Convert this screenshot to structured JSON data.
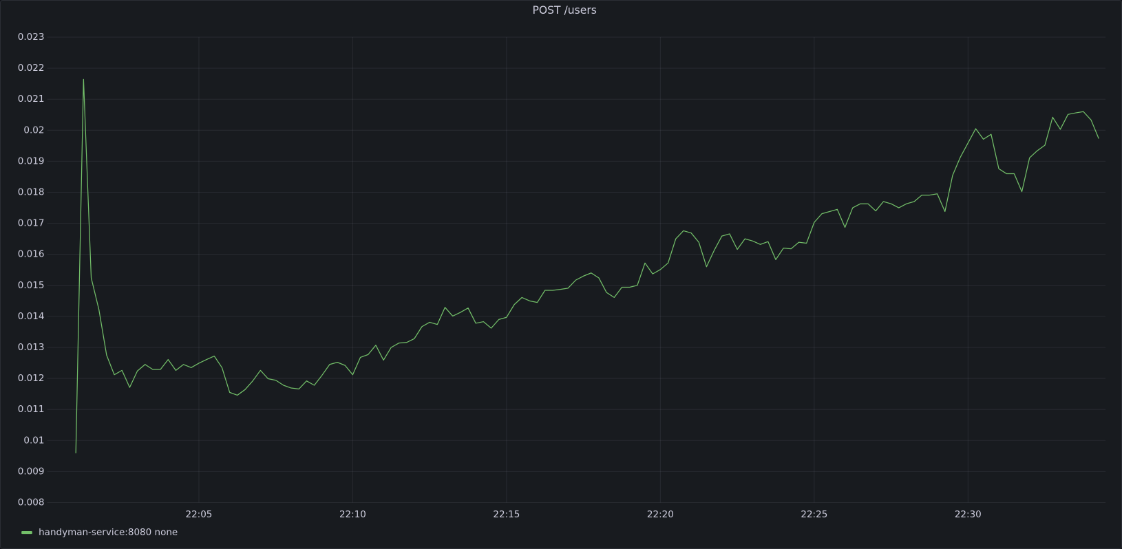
{
  "chart_data": {
    "type": "line",
    "title": "POST /users",
    "x": [
      1,
      1.25,
      1.5,
      1.75,
      2,
      2.25,
      2.5,
      2.75,
      3,
      3.25,
      3.5,
      3.75,
      4,
      4.25,
      4.5,
      4.75,
      5,
      5.25,
      5.5,
      5.75,
      6,
      6.25,
      6.5,
      6.75,
      7,
      7.25,
      7.5,
      7.75,
      8,
      8.25,
      8.5,
      8.75,
      9,
      9.25,
      9.5,
      9.75,
      10,
      10.25,
      10.5,
      10.75,
      11,
      11.25,
      11.5,
      11.75,
      12,
      12.25,
      12.5,
      12.75,
      13,
      13.25,
      13.5,
      13.75,
      14,
      14.25,
      14.5,
      14.75,
      15,
      15.25,
      15.5,
      15.75,
      16,
      16.25,
      16.5,
      16.75,
      17,
      17.25,
      17.5,
      17.75,
      18,
      18.25,
      18.5,
      18.75,
      19,
      19.25,
      19.5,
      19.75,
      20,
      20.25,
      20.5,
      20.75,
      21,
      21.25,
      21.5,
      21.75,
      22,
      22.25,
      22.5,
      22.75,
      23,
      23.25,
      23.5,
      23.75,
      24,
      24.25,
      24.5,
      24.75,
      25,
      25.25,
      25.5,
      25.75,
      26,
      26.25,
      26.5,
      26.75,
      27,
      27.25,
      27.5,
      27.75,
      28,
      28.25,
      28.5,
      28.75,
      29,
      29.25,
      29.5,
      29.75,
      30,
      30.25,
      30.5,
      30.75,
      31,
      31.25,
      31.5,
      31.75,
      32,
      32.25,
      32.5,
      32.75,
      33,
      33.25,
      33.5,
      33.75,
      34,
      34.25
    ],
    "series": [
      {
        "name": "handyman-service:8080 none",
        "color": "#73bf69",
        "values": [
          0.00959,
          0.02164,
          0.01524,
          0.01422,
          0.01275,
          0.01212,
          0.01226,
          0.01171,
          0.01224,
          0.01245,
          0.01229,
          0.01229,
          0.01261,
          0.01226,
          0.01245,
          0.01235,
          0.01249,
          0.01261,
          0.01272,
          0.01235,
          0.01155,
          0.01146,
          0.01164,
          0.01192,
          0.01226,
          0.01199,
          0.01194,
          0.01178,
          0.01169,
          0.01166,
          0.01192,
          0.01178,
          0.0121,
          0.01245,
          0.01252,
          0.01242,
          0.01212,
          0.01268,
          0.01277,
          0.01307,
          0.01259,
          0.013,
          0.01314,
          0.01316,
          0.01328,
          0.01367,
          0.01381,
          0.01374,
          0.01429,
          0.01401,
          0.01413,
          0.01427,
          0.01378,
          0.01383,
          0.01362,
          0.0139,
          0.01397,
          0.01438,
          0.01461,
          0.0145,
          0.01445,
          0.01484,
          0.01484,
          0.01487,
          0.01491,
          0.01517,
          0.0153,
          0.0154,
          0.01524,
          0.01477,
          0.01461,
          0.01494,
          0.01494,
          0.015,
          0.01572,
          0.01537,
          0.01551,
          0.01572,
          0.0165,
          0.01676,
          0.01669,
          0.01639,
          0.0156,
          0.01613,
          0.01659,
          0.01666,
          0.01616,
          0.0165,
          0.01643,
          0.01632,
          0.01641,
          0.01583,
          0.0162,
          0.01618,
          0.01639,
          0.01636,
          0.01703,
          0.01731,
          0.01738,
          0.01745,
          0.01687,
          0.0175,
          0.01763,
          0.01763,
          0.0174,
          0.0177,
          0.01763,
          0.0175,
          0.01763,
          0.0177,
          0.01791,
          0.01791,
          0.01795,
          0.01738,
          0.01855,
          0.01913,
          0.01959,
          0.02005,
          0.01971,
          0.01987,
          0.01876,
          0.0186,
          0.0186,
          0.01802,
          0.01911,
          0.01934,
          0.01952,
          0.02042,
          0.02003,
          0.02051,
          0.02056,
          0.0206,
          0.02033,
          0.01973
        ]
      }
    ],
    "xlim": [
      0.07,
      34.47
    ],
    "xticks": [
      {
        "value": 5,
        "label": "22:05"
      },
      {
        "value": 10,
        "label": "22:10"
      },
      {
        "value": 15,
        "label": "22:15"
      },
      {
        "value": 20,
        "label": "22:20"
      },
      {
        "value": 25,
        "label": "22:25"
      },
      {
        "value": 30,
        "label": "22:30"
      }
    ],
    "ylim": [
      0.008,
      0.023
    ],
    "yticks": [
      0.008,
      0.009,
      0.01,
      0.011,
      0.012,
      0.013,
      0.014,
      0.015,
      0.016,
      0.017,
      0.018,
      0.019,
      0.02,
      0.021,
      0.022,
      0.023
    ],
    "grid": true,
    "legend": "bottom-left"
  }
}
